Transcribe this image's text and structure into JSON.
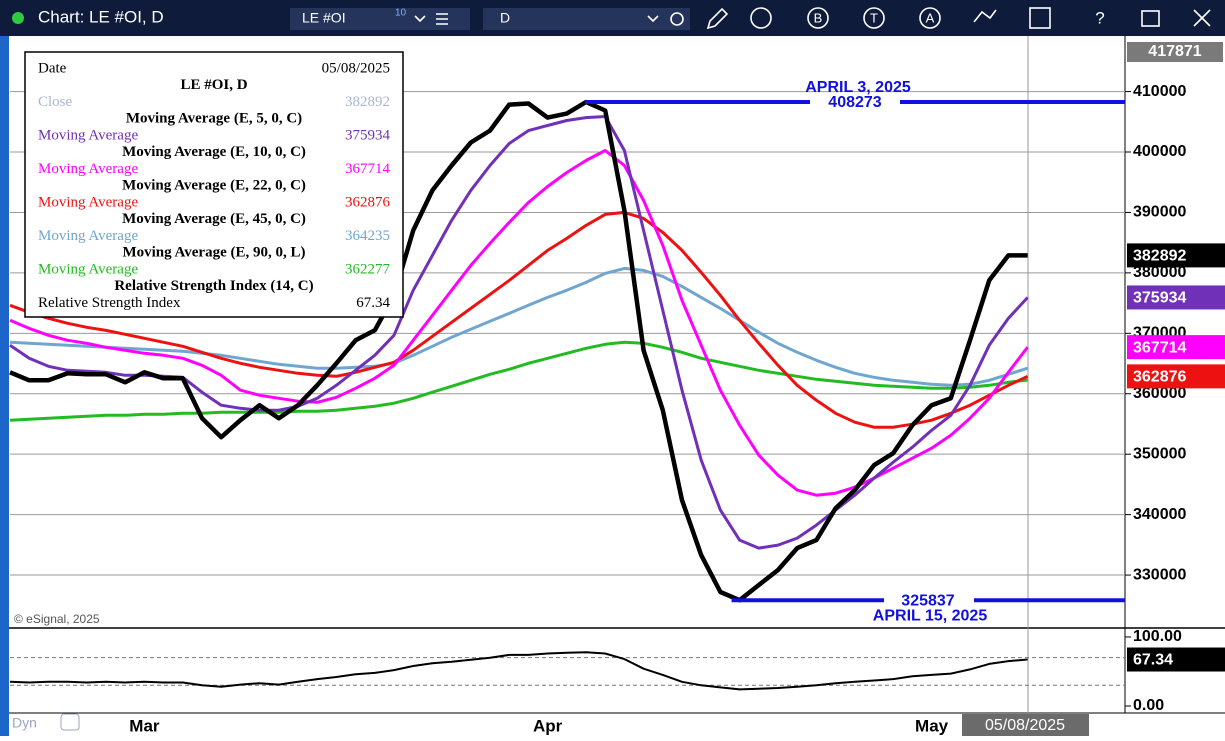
{
  "window": {
    "title": "Chart: LE #OI, D",
    "symbol": "LE #OI",
    "symbol_badge": "10",
    "interval": "D",
    "tools": [
      "B",
      "T",
      "A",
      "?"
    ],
    "mode": "Dyn",
    "copyright": "© eSignal, 2025",
    "cursor_date": "05/08/2025",
    "date_label": "Date"
  },
  "chart_data": [
    {
      "type": "line",
      "annotations": [
        "APRIL 3, 2025",
        "APRIL 15, 2025"
      ],
      "categories": [
        null,
        null,
        null,
        null,
        null,
        null,
        null,
        "Mar",
        null,
        null,
        null,
        null,
        null,
        null,
        null,
        null,
        null,
        null,
        null,
        null,
        null,
        null,
        null,
        null,
        null,
        null,
        null,
        null,
        "Apr",
        null,
        null,
        null,
        null,
        null,
        null,
        null,
        null,
        null,
        null,
        null,
        null,
        null,
        null,
        null,
        null,
        null,
        null,
        null,
        "May",
        null,
        null,
        null,
        null,
        null
      ],
      "ylim": [
        321240,
        417871
      ],
      "yticks": [
        330000,
        340000,
        350000,
        360000,
        370000,
        380000,
        390000,
        400000,
        410000
      ],
      "grid": true,
      "series": [
        {
          "name": "Close",
          "study": "LE #OI, D",
          "color": "#000000",
          "label_color": "#a9b6d3",
          "last_label": true,
          "values": [
            363550,
            362230,
            362230,
            363390,
            363220,
            363220,
            361900,
            363550,
            362560,
            362560,
            355950,
            352810,
            355620,
            358100,
            355950,
            358100,
            361400,
            365040,
            368840,
            370500,
            376280,
            387020,
            393640,
            397770,
            401570,
            403550,
            407850,
            408020,
            405700,
            406360,
            408273,
            406860,
            390330,
            367190,
            357270,
            342400,
            333300,
            327190,
            325837,
            328350,
            330830,
            334460,
            335790,
            341070,
            344050,
            348180,
            350170,
            354790,
            358100,
            359260,
            368840,
            378760,
            382890,
            382892
          ]
        },
        {
          "name": "Moving Average",
          "study": "Moving Average (E, 5, 0, C)",
          "color": "#7030b8",
          "label_color": "#7030b8",
          "last_label": true,
          "values": [
            368010,
            365870,
            364540,
            363880,
            363720,
            363550,
            363060,
            363060,
            362890,
            362720,
            360250,
            358100,
            357600,
            357270,
            357270,
            357930,
            359250,
            361400,
            363880,
            366360,
            369670,
            377110,
            382890,
            388680,
            393640,
            397770,
            401400,
            403550,
            404380,
            405210,
            405700,
            405870,
            400250,
            387020,
            373800,
            360580,
            349000,
            340740,
            335780,
            334460,
            334950,
            336110,
            338260,
            340740,
            343220,
            346030,
            348670,
            351150,
            353960,
            356440,
            361400,
            368010,
            372480,
            375934
          ]
        },
        {
          "name": "Moving Average",
          "study": "Moving Average (E, 10, 0, C)",
          "color": "#ff00ff",
          "label_color": "#ff00ff",
          "last_label": true,
          "values": [
            372150,
            370820,
            369670,
            368840,
            368340,
            367680,
            367190,
            366690,
            366360,
            365870,
            364710,
            363060,
            360580,
            359750,
            359250,
            358760,
            358590,
            359420,
            360910,
            362560,
            364710,
            368840,
            372970,
            377110,
            381240,
            384870,
            388350,
            391650,
            394300,
            396610,
            398590,
            400250,
            397770,
            391980,
            384540,
            375450,
            368010,
            360580,
            354790,
            349830,
            346520,
            344050,
            343220,
            343550,
            344540,
            346030,
            347680,
            349340,
            350990,
            353140,
            355950,
            359250,
            363550,
            367714
          ]
        },
        {
          "name": "Moving Average",
          "study": "Moving Average (E, 22, 0, C)",
          "color": "#ee1111",
          "label_color": "#ee1111",
          "last_label": true,
          "values": [
            374630,
            373470,
            372480,
            371650,
            370990,
            370490,
            369830,
            369170,
            368510,
            367850,
            366860,
            365870,
            365040,
            364380,
            363880,
            363390,
            363060,
            362890,
            363550,
            364380,
            365200,
            367190,
            369500,
            371820,
            374130,
            376440,
            378760,
            381240,
            383720,
            385700,
            387850,
            389670,
            390000,
            389010,
            386690,
            383720,
            380080,
            376280,
            372150,
            368340,
            364710,
            361400,
            358920,
            356770,
            355290,
            354460,
            354460,
            354960,
            355620,
            356770,
            358100,
            359750,
            361400,
            362876
          ]
        },
        {
          "name": "Moving Average",
          "study": "Moving Average (E, 45, 0, C)",
          "color": "#6fa6d0",
          "label_color": "#6fa6d0",
          "last_label": false,
          "values": [
            368510,
            368340,
            368180,
            368010,
            367850,
            367680,
            367520,
            367350,
            367190,
            367020,
            366690,
            366360,
            365870,
            365370,
            364870,
            364540,
            364210,
            364210,
            364380,
            364540,
            365040,
            366360,
            367850,
            369340,
            370660,
            371980,
            373300,
            374630,
            375950,
            377110,
            378430,
            379920,
            380740,
            380410,
            379420,
            377770,
            375950,
            374130,
            372150,
            370160,
            368340,
            366860,
            365530,
            364380,
            363390,
            362720,
            362230,
            361900,
            361570,
            361400,
            361570,
            362230,
            363220,
            364235
          ]
        },
        {
          "name": "Moving Average",
          "study": "Moving Average (E, 90, 0, L)",
          "color": "#22bb22",
          "label_color": "#22bb22",
          "last_label": false,
          "values": [
            355620,
            355780,
            355950,
            356110,
            356280,
            356440,
            356440,
            356610,
            356610,
            356770,
            356770,
            356940,
            356940,
            356940,
            356940,
            357100,
            357100,
            357270,
            357600,
            357930,
            358430,
            359250,
            360250,
            361240,
            362230,
            363220,
            364050,
            365040,
            365870,
            366690,
            367520,
            368180,
            368510,
            368340,
            367680,
            366860,
            365870,
            365200,
            364540,
            363880,
            363390,
            362890,
            362390,
            362060,
            361730,
            361400,
            361240,
            361070,
            360910,
            360910,
            361070,
            361400,
            361900,
            362277
          ]
        }
      ]
    },
    {
      "type": "line",
      "ylim": [
        -8.7,
        113
      ],
      "yticks": [
        {
          "value": 100,
          "label": "100.00"
        },
        {
          "value": 0,
          "label": "0.00"
        }
      ],
      "levels": [
        70,
        30
      ],
      "series": [
        {
          "name": "Relative Strength Index",
          "study": "Relative Strength Index (14, C)",
          "color": "#000000",
          "label_color": "#000000",
          "last_label": true,
          "values": [
            35,
            34,
            35,
            35,
            34,
            35,
            34,
            35,
            34,
            34,
            30,
            28,
            31,
            33,
            31,
            35,
            39,
            42,
            46,
            48,
            52,
            58,
            62,
            64,
            67,
            70,
            74,
            74,
            76,
            77,
            78,
            76,
            68,
            54,
            45,
            35,
            30,
            27,
            24,
            25,
            26,
            28,
            30,
            33,
            35,
            37,
            39,
            43,
            45,
            47,
            53,
            61,
            65,
            67.34
          ]
        }
      ]
    }
  ]
}
